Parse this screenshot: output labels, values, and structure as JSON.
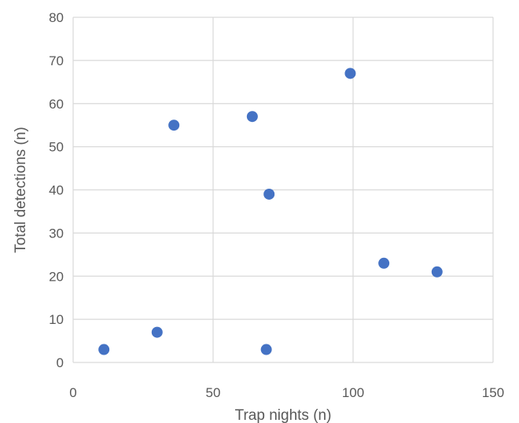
{
  "chart_data": {
    "type": "scatter",
    "title": "",
    "xlabel": "Trap nights (n)",
    "ylabel": "Total detections (n)",
    "xlim": [
      0,
      150
    ],
    "ylim": [
      0,
      80
    ],
    "xticks": [
      0,
      50,
      100,
      150
    ],
    "yticks": [
      0,
      10,
      20,
      30,
      40,
      50,
      60,
      70,
      80
    ],
    "grid": true,
    "legend": "none",
    "marker_color": "#4472C4",
    "gridline_color": "#D9D9D9",
    "series": [
      {
        "points": [
          {
            "x": 11,
            "y": 3
          },
          {
            "x": 30,
            "y": 7
          },
          {
            "x": 36,
            "y": 55
          },
          {
            "x": 64,
            "y": 57
          },
          {
            "x": 69,
            "y": 3
          },
          {
            "x": 70,
            "y": 39
          },
          {
            "x": 99,
            "y": 67
          },
          {
            "x": 111,
            "y": 23
          },
          {
            "x": 130,
            "y": 21
          }
        ]
      }
    ]
  }
}
